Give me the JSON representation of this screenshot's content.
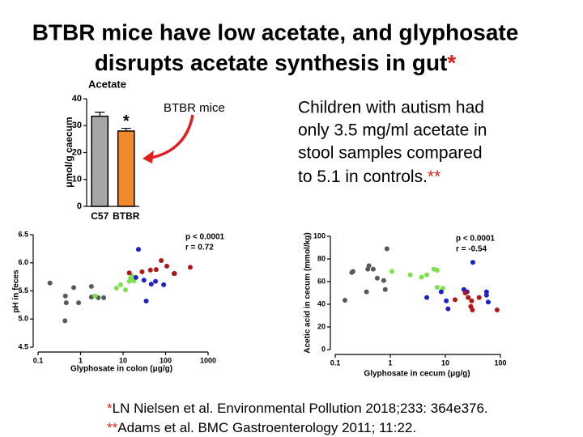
{
  "title_lines": [
    "BTBR mice have low acetate, and glyphosate",
    "disrupts acetate synthesis in gut"
  ],
  "title_mark": "*",
  "callout": "BTBR mice",
  "body_lines": [
    "Children with autism had",
    "only 3.5 mg/ml acetate in",
    "stool samples compared",
    "to 5.1 in controls."
  ],
  "body_mark": "**",
  "references": [
    {
      "mark": "*",
      "text": "LN Nielsen et al. Environmental Pollution 2018;233: 364e376."
    },
    {
      "mark": "**",
      "text": "Adams et al. BMC Gastroenterology 2011; 11:22."
    }
  ],
  "chart_data": [
    {
      "type": "bar",
      "title": "Acetate",
      "y_label": "μmol/g caecum",
      "categories": [
        "C57",
        "BTBR"
      ],
      "values": [
        33.5,
        28
      ],
      "errors": [
        1.5,
        1
      ],
      "colors": [
        "#a6a6a6",
        "#f08a2a"
      ],
      "annotation": "*",
      "ylim": [
        0,
        40
      ],
      "yticks": [
        0,
        10,
        20,
        30,
        40
      ]
    },
    {
      "type": "scatter",
      "x_label": "Glyphosate in colon (μg/g)",
      "y_label": "pH in feces",
      "annotations": [
        "p < 0.0001",
        "r = 0.72"
      ],
      "xscale": "log",
      "xlim": [
        0.1,
        1000
      ],
      "xticks": [
        0.1,
        1,
        10,
        100,
        1000
      ],
      "ylim": [
        4.5,
        6.5
      ],
      "yticks": [
        4.5,
        {
          "value": 5,
          "label": "5.0"
        },
        5.5,
        {
          "value": 6,
          "label": "6.0"
        },
        6.5
      ],
      "series": [
        {
          "color": "#595959",
          "x": [
            0.19,
            0.44,
            0.69,
            0.9,
            0.46,
            0.43,
            1.8,
            1.8,
            2.6,
            3.5
          ],
          "values": [
            5.64,
            5.41,
            5.56,
            5.29,
            5.29,
            4.97,
            5.58,
            5.39,
            5.38,
            5.38
          ]
        },
        {
          "color": "#7ee04a",
          "x": [
            2.2,
            7.0,
            8.8,
            11.4,
            14.9,
            16,
            14,
            18
          ],
          "values": [
            5.41,
            5.55,
            5.61,
            5.52,
            5.72,
            5.77,
            5.67,
            5.68
          ]
        },
        {
          "color": "#2020c8",
          "x": [
            23,
            20,
            31,
            35,
            46,
            58,
            90,
            158
          ],
          "values": [
            6.24,
            5.74,
            5.69,
            5.32,
            5.62,
            5.67,
            5.61,
            5.81
          ]
        },
        {
          "color": "#b01818",
          "x": [
            14,
            28,
            44,
            60,
            79,
            107,
            163,
            380
          ],
          "values": [
            5.82,
            5.84,
            5.87,
            5.88,
            6.04,
            5.94,
            5.81,
            5.92
          ]
        }
      ]
    },
    {
      "type": "scatter",
      "x_label": "Glyphosate in cecum (μg/g)",
      "y_label": "Acetic acid in cecum (mmol/kg)",
      "annotations": [
        "p < 0.0001",
        "r = -0.54"
      ],
      "xscale": "log",
      "xlim": [
        0.1,
        100
      ],
      "xticks": [
        0.1,
        1,
        10,
        100
      ],
      "ylim": [
        0,
        100
      ],
      "yticks": [
        0,
        20,
        40,
        60,
        80,
        100
      ],
      "series": [
        {
          "color": "#595959",
          "x": [
            0.15,
            0.21,
            0.2,
            0.39,
            0.41,
            0.49,
            0.37,
            0.58,
            0.81,
            0.87,
            0.76
          ],
          "values": [
            43.6,
            69,
            68,
            71,
            74,
            71,
            51,
            63,
            53,
            89,
            61
          ]
        },
        {
          "color": "#7ee04a",
          "x": [
            1.07,
            2.3,
            3.7,
            4.6,
            6.2,
            7.1,
            7.1,
            9.0
          ],
          "values": [
            69,
            66,
            64,
            66,
            71,
            70,
            55,
            54
          ]
        },
        {
          "color": "#2020c8",
          "x": [
            4.6,
            8.4,
            10.4,
            11.2,
            21.7,
            24.8,
            31.6,
            56,
            56,
            60
          ],
          "values": [
            46,
            51,
            43,
            36,
            53,
            51,
            77,
            51,
            48,
            42
          ]
        },
        {
          "color": "#b01818",
          "x": [
            15,
            23,
            26,
            30,
            29,
            31,
            41,
            87
          ],
          "values": [
            44,
            50,
            46,
            43,
            38,
            35,
            46,
            35
          ]
        }
      ]
    }
  ]
}
